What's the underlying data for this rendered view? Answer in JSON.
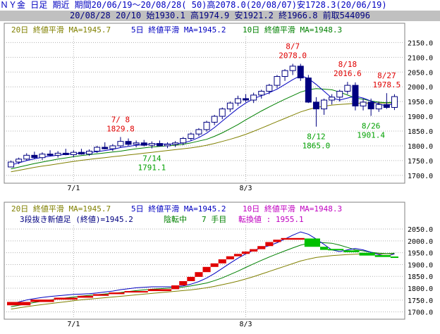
{
  "header": {
    "line1": "ＮＹ金 日足 期近 期間20/06/19～20/08/28( 50)高2078.0(20/08/07)安1728.3(20/06/19)",
    "line2": "20/08/28 20/10 始1930.1 高1974.9 安1921.2 終1966.8 前取544096"
  },
  "colors": {
    "ma20": "#808000",
    "ma5": "#0000c0",
    "ma10": "#008000",
    "up": "#ffffff",
    "down": "#000080",
    "red": "#e00000",
    "green": "#00c000",
    "annot_high": "#e00000",
    "annot_low": "#00a000"
  },
  "chart_data": [
    {
      "type": "candlestick",
      "legend": {
        "ma20": "20日 終値平滑 MA=1945.7",
        "ma5": "5日 終値平滑 MA=1945.2",
        "ma10": "10日 終値平滑 MA=1948.3"
      },
      "x_ticks": [
        {
          "label": "7/1",
          "index": 8
        },
        {
          "label": "8/3",
          "index": 30
        }
      ],
      "y_ticks": [
        "2150.0",
        "2100.0",
        "2050.0",
        "2000.0",
        "1950.0",
        "1900.0",
        "1850.0",
        "1800.0",
        "1750.0",
        "1700.0"
      ],
      "ylim": [
        1690,
        2170
      ],
      "candles": [
        [
          1728.3,
          1750,
          1728.3,
          1745
        ],
        [
          1745,
          1760,
          1738,
          1755
        ],
        [
          1755,
          1775,
          1750,
          1768
        ],
        [
          1768,
          1780,
          1755,
          1760
        ],
        [
          1760,
          1778,
          1752,
          1772
        ],
        [
          1772,
          1785,
          1765,
          1768
        ],
        [
          1768,
          1782,
          1760,
          1775
        ],
        [
          1775,
          1790,
          1768,
          1770
        ],
        [
          1770,
          1785,
          1762,
          1778
        ],
        [
          1778,
          1790,
          1770,
          1772
        ],
        [
          1772,
          1788,
          1766,
          1782
        ],
        [
          1782,
          1800,
          1776,
          1795
        ],
        [
          1795,
          1812,
          1788,
          1790
        ],
        [
          1790,
          1806,
          1782,
          1800
        ],
        [
          1800,
          1829.8,
          1795,
          1815
        ],
        [
          1815,
          1825,
          1800,
          1805
        ],
        [
          1805,
          1818,
          1795,
          1810
        ],
        [
          1810,
          1820,
          1798,
          1802
        ],
        [
          1802,
          1815,
          1791.1,
          1808
        ],
        [
          1808,
          1818,
          1798,
          1800
        ],
        [
          1800,
          1812,
          1792,
          1805
        ],
        [
          1805,
          1816,
          1796,
          1810
        ],
        [
          1810,
          1830,
          1802,
          1825
        ],
        [
          1825,
          1845,
          1818,
          1840
        ],
        [
          1840,
          1860,
          1832,
          1855
        ],
        [
          1855,
          1885,
          1848,
          1880
        ],
        [
          1880,
          1905,
          1870,
          1900
        ],
        [
          1900,
          1930,
          1890,
          1925
        ],
        [
          1925,
          1950,
          1915,
          1945
        ],
        [
          1945,
          1970,
          1935,
          1960
        ],
        [
          1960,
          1975,
          1948,
          1955
        ],
        [
          1955,
          1980,
          1945,
          1972
        ],
        [
          1972,
          1990,
          1960,
          1985
        ],
        [
          1985,
          2010,
          1975,
          2005
        ],
        [
          2005,
          2040,
          1995,
          2035
        ],
        [
          2035,
          2060,
          2020,
          2055
        ],
        [
          2055,
          2078,
          2040,
          2070
        ],
        [
          2070,
          2078,
          2020,
          2030
        ],
        [
          2030,
          2040,
          1945,
          1948
        ],
        [
          1948,
          1965,
          1865,
          1925
        ],
        [
          1925,
          1960,
          1905,
          1955
        ],
        [
          1955,
          1975,
          1940,
          1965
        ],
        [
          1965,
          1990,
          1950,
          1985
        ],
        [
          1985,
          2016.6,
          1975,
          2005
        ],
        [
          2005,
          2015,
          1920,
          1935
        ],
        [
          1935,
          1960,
          1920,
          1948
        ],
        [
          1948,
          1960,
          1901.4,
          1925
        ],
        [
          1925,
          1950,
          1915,
          1940
        ],
        [
          1940,
          1978.5,
          1925,
          1930
        ],
        [
          1930.1,
          1974.9,
          1921.2,
          1966.8
        ]
      ],
      "ma5": [
        1735,
        1742,
        1750,
        1756,
        1761,
        1765,
        1768,
        1771,
        1774,
        1775,
        1777,
        1780,
        1784,
        1788,
        1794,
        1798,
        1802,
        1804,
        1806,
        1806,
        1806,
        1806,
        1810,
        1817,
        1828,
        1843,
        1862,
        1884,
        1906,
        1927,
        1945,
        1960,
        1970,
        1980,
        1992,
        2008,
        2024,
        2038,
        2028,
        2008,
        1985,
        1962,
        1955,
        1962,
        1968,
        1962,
        1952,
        1942,
        1935,
        1945.2
      ],
      "ma10": [
        1722,
        1728,
        1734,
        1740,
        1745,
        1750,
        1755,
        1759,
        1763,
        1767,
        1770,
        1773,
        1776,
        1779,
        1782,
        1786,
        1790,
        1793,
        1796,
        1798,
        1800,
        1802,
        1805,
        1810,
        1816,
        1822,
        1832,
        1844,
        1858,
        1872,
        1888,
        1903,
        1918,
        1932,
        1945,
        1958,
        1970,
        1982,
        1990,
        1994,
        1992,
        1990,
        1982,
        1972,
        1962,
        1958,
        1952,
        1948,
        1946,
        1948.3
      ],
      "ma20": [
        1712,
        1717,
        1722,
        1727,
        1731,
        1735,
        1739,
        1743,
        1747,
        1751,
        1754,
        1757,
        1760,
        1763,
        1766,
        1769,
        1772,
        1775,
        1778,
        1781,
        1784,
        1787,
        1790,
        1793,
        1797,
        1802,
        1808,
        1815,
        1822,
        1830,
        1839,
        1849,
        1860,
        1871,
        1882,
        1893,
        1904,
        1915,
        1923,
        1930,
        1934,
        1938,
        1940,
        1942,
        1944,
        1945,
        1945,
        1945,
        1945,
        1945.7
      ],
      "annotations": [
        {
          "date": "8/7",
          "value": "2078.0",
          "index": 36,
          "kind": "high"
        },
        {
          "date": "8/18",
          "value": "2016.6",
          "index": 43,
          "kind": "high"
        },
        {
          "date": "8/27",
          "value": "1978.5",
          "index": 48,
          "kind": "high"
        },
        {
          "date": "7/ 8",
          "value": "1829.8",
          "index": 14,
          "kind": "high"
        },
        {
          "date": "7/14",
          "value": "1791.1",
          "index": 18,
          "kind": "low"
        },
        {
          "date": "8/12",
          "value": "1865.0",
          "index": 39,
          "kind": "low"
        },
        {
          "date": "8/26",
          "value": "1901.4",
          "index": 46,
          "kind": "low"
        }
      ]
    },
    {
      "type": "three-line-break",
      "legend": {
        "ma20": "20日 終値平滑 MA=1945.7",
        "ma5": "5日 終値平滑 MA=1945.2",
        "ma10": "10日 終値平滑 MA=1948.3",
        "info_a": "3段抜き新値足 (終値)=1945.2",
        "info_b": "陰転中",
        "info_c": "7 手目",
        "info_d": "転換値 : 1955.1"
      },
      "x_ticks": [
        {
          "label": "7/1",
          "index": 8
        },
        {
          "label": "8/3",
          "index": 30
        }
      ],
      "y_ticks": [
        "2050.0",
        "2000.0",
        "1950.0",
        "1900.0",
        "1850.0",
        "1800.0",
        "1750.0",
        "1700.0"
      ],
      "ylim": [
        1690,
        2065
      ],
      "bricks": [
        {
          "start": 0,
          "end": 3,
          "lo": 1728,
          "hi": 1742,
          "dir": "up"
        },
        {
          "start": 3,
          "end": 6,
          "lo": 1742,
          "hi": 1752,
          "dir": "up"
        },
        {
          "start": 6,
          "end": 9,
          "lo": 1752,
          "hi": 1760,
          "dir": "up"
        },
        {
          "start": 9,
          "end": 11,
          "lo": 1760,
          "hi": 1768,
          "dir": "up"
        },
        {
          "start": 11,
          "end": 13,
          "lo": 1768,
          "hi": 1775,
          "dir": "up"
        },
        {
          "start": 13,
          "end": 15,
          "lo": 1775,
          "hi": 1782,
          "dir": "up"
        },
        {
          "start": 15,
          "end": 18,
          "lo": 1782,
          "hi": 1788,
          "dir": "up"
        },
        {
          "start": 18,
          "end": 21,
          "lo": 1788,
          "hi": 1796,
          "dir": "up"
        },
        {
          "start": 21,
          "end": 22,
          "lo": 1796,
          "hi": 1812,
          "dir": "up"
        },
        {
          "start": 22,
          "end": 23,
          "lo": 1812,
          "hi": 1830,
          "dir": "up"
        },
        {
          "start": 23,
          "end": 24,
          "lo": 1830,
          "hi": 1848,
          "dir": "up"
        },
        {
          "start": 24,
          "end": 25,
          "lo": 1848,
          "hi": 1868,
          "dir": "up"
        },
        {
          "start": 25,
          "end": 26,
          "lo": 1868,
          "hi": 1890,
          "dir": "up"
        },
        {
          "start": 26,
          "end": 27,
          "lo": 1890,
          "hi": 1905,
          "dir": "up"
        },
        {
          "start": 27,
          "end": 28,
          "lo": 1905,
          "hi": 1922,
          "dir": "up"
        },
        {
          "start": 28,
          "end": 29,
          "lo": 1922,
          "hi": 1935,
          "dir": "up"
        },
        {
          "start": 29,
          "end": 30,
          "lo": 1935,
          "hi": 1945,
          "dir": "up"
        },
        {
          "start": 30,
          "end": 31,
          "lo": 1945,
          "hi": 1955,
          "dir": "up"
        },
        {
          "start": 31,
          "end": 32,
          "lo": 1955,
          "hi": 1965,
          "dir": "up"
        },
        {
          "start": 32,
          "end": 33,
          "lo": 1965,
          "hi": 1978,
          "dir": "up"
        },
        {
          "start": 33,
          "end": 34,
          "lo": 1978,
          "hi": 1995,
          "dir": "up"
        },
        {
          "start": 34,
          "end": 35,
          "lo": 1995,
          "hi": 2005,
          "dir": "up"
        },
        {
          "start": 35,
          "end": 38,
          "lo": 2005,
          "hi": 2012,
          "dir": "up"
        },
        {
          "start": 38,
          "end": 40,
          "lo": 1975,
          "hi": 2010,
          "dir": "down"
        },
        {
          "start": 40,
          "end": 41,
          "lo": 1962,
          "hi": 1975,
          "dir": "down"
        },
        {
          "start": 41,
          "end": 43,
          "lo": 1960,
          "hi": 1966,
          "dir": "down"
        },
        {
          "start": 43,
          "end": 45,
          "lo": 1952,
          "hi": 1960,
          "dir": "down"
        },
        {
          "start": 45,
          "end": 47,
          "lo": 1938,
          "hi": 1950,
          "dir": "down"
        },
        {
          "start": 47,
          "end": 49,
          "lo": 1932,
          "hi": 1940,
          "dir": "down"
        },
        {
          "start": 49,
          "end": 50,
          "lo": 1928,
          "hi": 1934,
          "dir": "down"
        }
      ]
    }
  ]
}
